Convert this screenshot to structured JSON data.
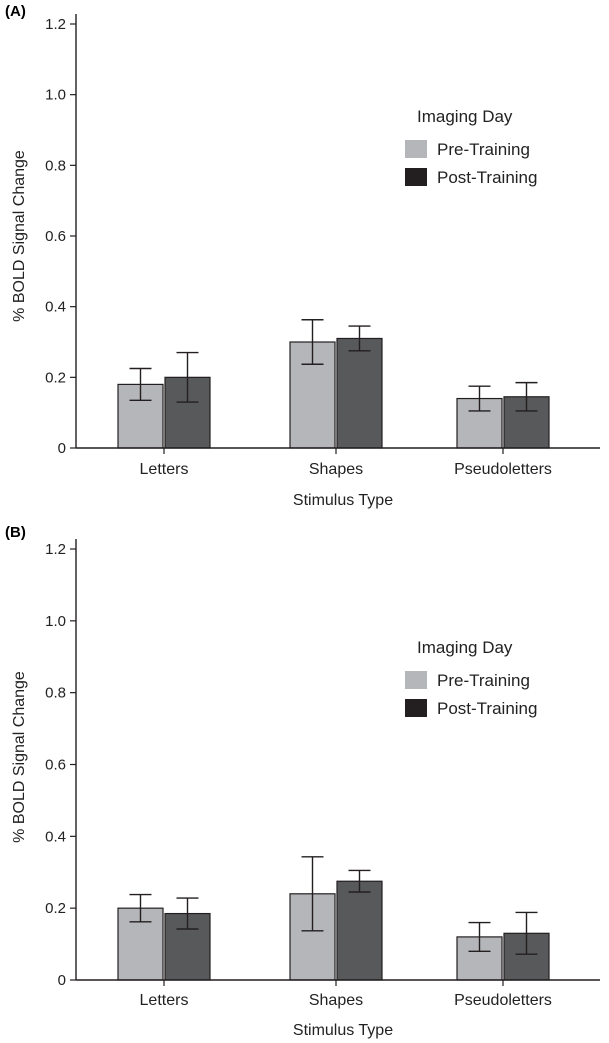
{
  "chart_data": [
    {
      "panel_label": "(A)",
      "type": "bar",
      "categories": [
        "Letters",
        "Shapes",
        "Pseudoletters"
      ],
      "series": [
        {
          "name": "Pre-Training",
          "color": "#b5b6b9",
          "values": [
            0.18,
            0.3,
            0.14
          ],
          "errors": [
            0.045,
            0.063,
            0.035
          ]
        },
        {
          "name": "Post-Training",
          "color": "#58595b",
          "values": [
            0.2,
            0.31,
            0.145
          ],
          "errors": [
            0.07,
            0.035,
            0.04
          ]
        }
      ],
      "xlabel": "Stimulus Type",
      "ylabel": "% BOLD Signal Change",
      "ylim": [
        0,
        1.2
      ],
      "yticks": [
        "0",
        "0.2",
        "0.4",
        "0.6",
        "0.8",
        "1.0",
        "1.2"
      ],
      "legend_title": "Imaging Day",
      "legend_position": "top-right",
      "legend_items": [
        {
          "label": "Pre-Training",
          "color": "#b5b6b9"
        },
        {
          "label": "Post-Training",
          "color": "#231f20"
        }
      ],
      "grid": false
    },
    {
      "panel_label": "(B)",
      "type": "bar",
      "categories": [
        "Letters",
        "Shapes",
        "Pseudoletters"
      ],
      "series": [
        {
          "name": "Pre-Training",
          "color": "#b5b6b9",
          "values": [
            0.2,
            0.24,
            0.12
          ],
          "errors": [
            0.038,
            0.103,
            0.04
          ]
        },
        {
          "name": "Post-Training",
          "color": "#58595b",
          "values": [
            0.185,
            0.275,
            0.13
          ],
          "errors": [
            0.043,
            0.03,
            0.058
          ]
        }
      ],
      "xlabel": "Stimulus Type",
      "ylabel": "% BOLD Signal Change",
      "ylim": [
        0,
        1.2
      ],
      "yticks": [
        "0",
        "0.2",
        "0.4",
        "0.6",
        "0.8",
        "1.0",
        "1.2"
      ],
      "legend_title": "Imaging Day",
      "legend_position": "top-right",
      "legend_items": [
        {
          "label": "Pre-Training",
          "color": "#b5b6b9"
        },
        {
          "label": "Post-Training",
          "color": "#231f20"
        }
      ],
      "grid": false
    }
  ]
}
